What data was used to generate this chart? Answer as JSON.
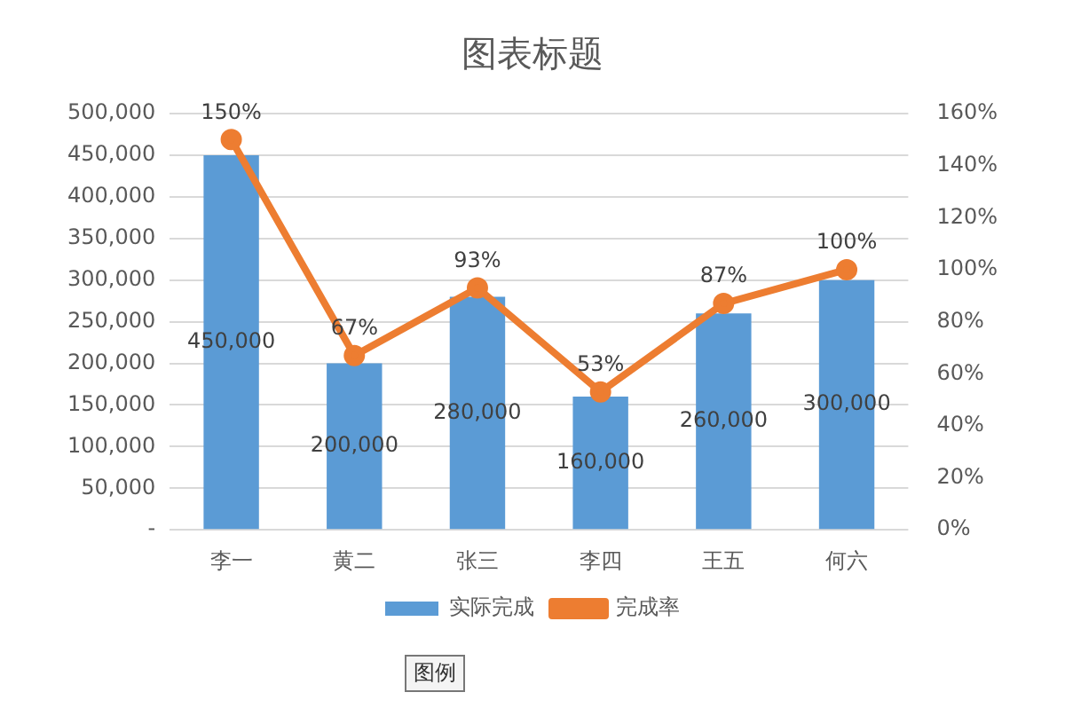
{
  "chart_data": {
    "type": "bar",
    "title": "图表标题",
    "categories": [
      "李一",
      "黄二",
      "张三",
      "李四",
      "王五",
      "何六"
    ],
    "series": [
      {
        "name": "实际完成",
        "color": "#5b9bd5",
        "values": [
          450000,
          200000,
          280000,
          160000,
          260000,
          300000
        ],
        "value_labels": [
          "450,000",
          "200,000",
          "280,000",
          "160,000",
          "260,000",
          "300,000"
        ]
      },
      {
        "name": "完成率",
        "type": "line",
        "axis": "y2",
        "color": "#ed7d31",
        "values": [
          150,
          67,
          93,
          53,
          87,
          100
        ],
        "value_labels": [
          "150%",
          "67%",
          "93%",
          "53%",
          "87%",
          "100%"
        ]
      }
    ],
    "ylim": [
      0,
      500000
    ],
    "yticks": [
      {
        "value": 0,
        "label": "-"
      },
      {
        "value": 50000,
        "label": "50,000"
      },
      {
        "value": 100000,
        "label": "100,000"
      },
      {
        "value": 150000,
        "label": "150,000"
      },
      {
        "value": 200000,
        "label": "200,000"
      },
      {
        "value": 250000,
        "label": "250,000"
      },
      {
        "value": 300000,
        "label": "300,000"
      },
      {
        "value": 350000,
        "label": "350,000"
      },
      {
        "value": 400000,
        "label": "400,000"
      },
      {
        "value": 450000,
        "label": "450,000"
      },
      {
        "value": 500000,
        "label": "500,000"
      }
    ],
    "y2lim": [
      0,
      160
    ],
    "y2ticks": [
      {
        "value": 0,
        "label": "0%"
      },
      {
        "value": 20,
        "label": "20%"
      },
      {
        "value": 40,
        "label": "40%"
      },
      {
        "value": 60,
        "label": "60%"
      },
      {
        "value": 80,
        "label": "80%"
      },
      {
        "value": 100,
        "label": "100%"
      },
      {
        "value": 120,
        "label": "120%"
      },
      {
        "value": 140,
        "label": "140%"
      },
      {
        "value": 160,
        "label": "160%"
      }
    ],
    "grid": "y",
    "legend": "bottom",
    "marker": "circle",
    "line_style": "solid",
    "annotations": [
      "图例"
    ]
  }
}
